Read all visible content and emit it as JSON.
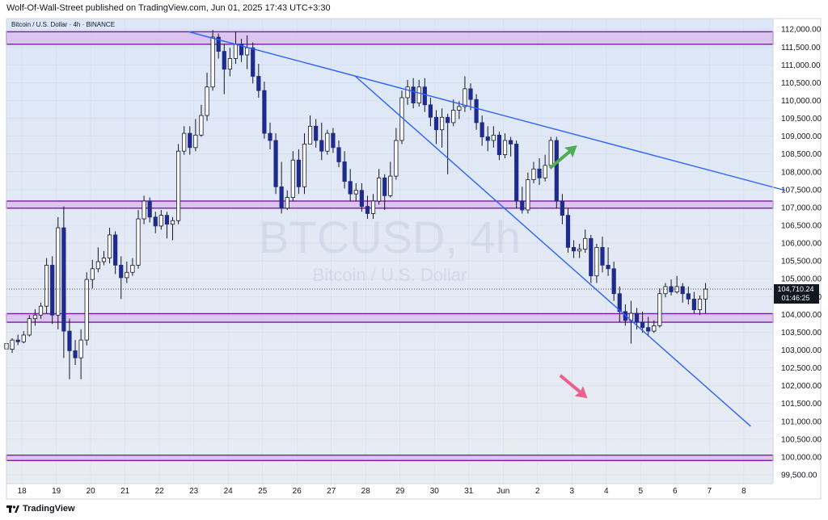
{
  "header": {
    "text": "Wolf-Of-Wall-Street published on TradingView.com, Jun 01, 2025 17:43 UTC+3:30"
  },
  "footer": {
    "logo_text": "TradingView"
  },
  "chart_data": {
    "type": "candlestick",
    "symbol_label": "Bitcoin / U.S. Dollar · 4h · BINANCE",
    "watermark": {
      "ticker": "BTCUSD, 4h",
      "name": "Bitcoin / U.S. Dollar"
    },
    "y_axis": {
      "ylim": [
        99250,
        112300
      ],
      "ticks": [
        112000,
        111500,
        111000,
        110500,
        110000,
        109500,
        109000,
        108500,
        108000,
        107500,
        107000,
        106500,
        106000,
        105500,
        105000,
        104500,
        104000,
        103500,
        103000,
        102500,
        102000,
        101500,
        101000,
        100500,
        100000,
        99500
      ],
      "tick_labels": [
        "112,000.00",
        "111,500.00",
        "111,000.00",
        "110,500.00",
        "110,000.00",
        "109,500.00",
        "109,000.00",
        "108,500.00",
        "108,000.00",
        "107,500.00",
        "107,000.00",
        "106,500.00",
        "106,000.00",
        "105,500.00",
        "105,000.00",
        "104,500.00",
        "104,000.00",
        "103,500.00",
        "103,000.00",
        "102,500.00",
        "102,000.00",
        "101,500.00",
        "101,000.00",
        "100,500.00",
        "100,000.00",
        "99,500.00"
      ]
    },
    "x_axis": {
      "ticks": [
        0,
        1,
        2,
        3,
        4,
        5,
        6,
        7,
        8,
        9,
        10,
        11,
        12,
        13,
        14,
        15,
        16,
        17,
        18,
        19,
        20,
        21
      ],
      "tick_labels": [
        "18",
        "19",
        "20",
        "21",
        "22",
        "23",
        "24",
        "25",
        "26",
        "27",
        "28",
        "29",
        "30",
        "31",
        "Jun",
        "2",
        "3",
        "4",
        "5",
        "6",
        "7",
        "8"
      ],
      "xlim": [
        -0.45,
        21.85
      ]
    },
    "current_price": {
      "value": 104710.24,
      "label": "104,710.24",
      "countdown": "01:46:25"
    },
    "zones": [
      {
        "from": 111580,
        "to": 111930
      },
      {
        "from": 106980,
        "to": 107180
      },
      {
        "from": 103780,
        "to": 104020
      },
      {
        "from": 99900,
        "to": 100050
      }
    ],
    "trendlines": [
      {
        "x1": 4.85,
        "y1": 111930,
        "x2": 22.2,
        "y2": 107480
      },
      {
        "x1": 9.7,
        "y1": 110680,
        "x2": 21.2,
        "y2": 100860
      }
    ],
    "arrows": [
      {
        "direction": "up",
        "color": "#4caf50",
        "x": 15.9,
        "y": 108540
      },
      {
        "direction": "down",
        "color": "#ec5f8c",
        "x": 16.2,
        "y": 101850
      }
    ],
    "colors": {
      "up": "#ffffff",
      "down": "#1e2a8c",
      "zone_fill": "#d9b8ec",
      "zone_border": "#7a1fa2",
      "trendline": "#2962ff",
      "background_top": "#dde7f8",
      "background_bottom": "#e8ebf2"
    },
    "start_x": -0.45,
    "bar_step": 0.1667,
    "candles": [
      [
        103030,
        103180,
        102950,
        102880
      ],
      [
        103020,
        103280,
        103330,
        102920
      ],
      [
        103280,
        103230,
        103430,
        103140
      ],
      [
        103230,
        103420,
        103530,
        103190
      ],
      [
        103420,
        103880,
        103980,
        103380
      ],
      [
        103880,
        103980,
        104140,
        103680
      ],
      [
        103980,
        104230,
        104330,
        103880
      ],
      [
        104230,
        105380,
        105580,
        104030
      ],
      [
        105380,
        103980,
        105630,
        103730
      ],
      [
        103980,
        106430,
        106730,
        103580
      ],
      [
        106430,
        103530,
        107030,
        102780
      ],
      [
        103530,
        102980,
        103880,
        102180
      ],
      [
        102980,
        102780,
        103280,
        102580
      ],
      [
        102780,
        103280,
        103580,
        102180
      ],
      [
        103280,
        104980,
        105180,
        103130
      ],
      [
        104980,
        105280,
        105530,
        104730
      ],
      [
        105280,
        105480,
        105880,
        105180
      ],
      [
        105480,
        105580,
        105780,
        105380
      ],
      [
        105580,
        106230,
        106430,
        105430
      ],
      [
        106230,
        105380,
        106330,
        105130
      ],
      [
        105380,
        105030,
        105630,
        104430
      ],
      [
        105030,
        105180,
        105480,
        104880
      ],
      [
        105180,
        105380,
        105580,
        105080
      ],
      [
        105380,
        106680,
        106930,
        105280
      ],
      [
        106680,
        107180,
        107330,
        106530
      ],
      [
        107180,
        106730,
        107280,
        106580
      ],
      [
        106730,
        106480,
        106880,
        106280
      ],
      [
        106480,
        106780,
        106930,
        106380
      ],
      [
        106780,
        106530,
        106880,
        106130
      ],
      [
        106530,
        106630,
        106730,
        106080
      ],
      [
        106630,
        108580,
        108780,
        106530
      ],
      [
        108580,
        109080,
        109280,
        108480
      ],
      [
        109080,
        108680,
        109280,
        108480
      ],
      [
        108680,
        109030,
        109480,
        108580
      ],
      [
        109030,
        109580,
        109880,
        108980
      ],
      [
        109580,
        110380,
        110780,
        109430
      ],
      [
        110380,
        111780,
        111980,
        110280
      ],
      [
        111780,
        111380,
        111880,
        111180
      ],
      [
        111380,
        110880,
        111580,
        110180
      ],
      [
        110880,
        111180,
        111480,
        110680
      ],
      [
        111180,
        111580,
        111930,
        111030
      ],
      [
        111580,
        111280,
        111730,
        111080
      ],
      [
        111280,
        111480,
        111830,
        110880
      ],
      [
        111480,
        110680,
        111630,
        110480
      ],
      [
        110680,
        110280,
        111030,
        110080
      ],
      [
        110280,
        109080,
        110530,
        108930
      ],
      [
        109080,
        108880,
        109380,
        108630
      ],
      [
        108880,
        107580,
        109080,
        107380
      ],
      [
        107580,
        106980,
        108280,
        106830
      ],
      [
        106980,
        107280,
        107480,
        106930
      ],
      [
        107280,
        108330,
        108580,
        107180
      ],
      [
        108330,
        107580,
        108630,
        107380
      ],
      [
        107580,
        108780,
        109080,
        107380
      ],
      [
        108780,
        109280,
        109580,
        109130
      ],
      [
        109280,
        108880,
        109480,
        108680
      ],
      [
        108880,
        108580,
        109380,
        108330
      ],
      [
        108580,
        109080,
        109180,
        108480
      ],
      [
        109080,
        108680,
        109230,
        108530
      ],
      [
        108680,
        108280,
        108880,
        108130
      ],
      [
        108280,
        107730,
        108580,
        107530
      ],
      [
        107730,
        107380,
        108080,
        107180
      ],
      [
        107380,
        107480,
        107680,
        107180
      ],
      [
        107480,
        107030,
        107680,
        106880
      ],
      [
        107030,
        106830,
        107330,
        106680
      ],
      [
        106830,
        107180,
        107380,
        106680
      ],
      [
        107180,
        107830,
        108080,
        107080
      ],
      [
        107830,
        107330,
        107930,
        106930
      ],
      [
        107330,
        107880,
        108280,
        107280
      ],
      [
        107880,
        108880,
        109230,
        107780
      ],
      [
        108880,
        110080,
        110280,
        108780
      ],
      [
        110080,
        110380,
        110580,
        109880
      ],
      [
        110380,
        109930,
        110630,
        109780
      ],
      [
        109930,
        110380,
        110580,
        109830
      ],
      [
        110380,
        109880,
        110630,
        109680
      ],
      [
        109880,
        109530,
        110080,
        109280
      ],
      [
        109530,
        109180,
        109730,
        108780
      ],
      [
        109180,
        109530,
        109780,
        108680
      ],
      [
        109530,
        109380,
        109630,
        107930
      ],
      [
        109380,
        109730,
        110030,
        109280
      ],
      [
        109730,
        109830,
        109980,
        109480
      ],
      [
        109830,
        110330,
        110680,
        109680
      ],
      [
        110330,
        110030,
        110480,
        109730
      ],
      [
        110030,
        109380,
        110180,
        109180
      ],
      [
        109380,
        108980,
        109580,
        108730
      ],
      [
        108980,
        108880,
        109280,
        108580
      ],
      [
        108880,
        109030,
        109280,
        108680
      ],
      [
        109030,
        108480,
        109130,
        108330
      ],
      [
        108480,
        108880,
        109080,
        108380
      ],
      [
        108880,
        108780,
        108980,
        108430
      ],
      [
        108780,
        107180,
        108880,
        106980
      ],
      [
        107180,
        106930,
        107580,
        106830
      ],
      [
        106930,
        107780,
        107980,
        106830
      ],
      [
        107780,
        108080,
        108280,
        107680
      ],
      [
        108080,
        107830,
        108380,
        107630
      ],
      [
        107830,
        108180,
        108480,
        107730
      ],
      [
        108180,
        108880,
        108980,
        108080
      ],
      [
        108880,
        107180,
        108980,
        106980
      ],
      [
        107180,
        106780,
        107380,
        106530
      ],
      [
        106780,
        105880,
        106980,
        105730
      ],
      [
        105880,
        105780,
        106080,
        105580
      ],
      [
        105780,
        105830,
        105980,
        105580
      ],
      [
        105830,
        106130,
        106380,
        105730
      ],
      [
        106130,
        105080,
        106230,
        104880
      ],
      [
        105080,
        105880,
        105980,
        104880
      ],
      [
        105880,
        105380,
        106180,
        105180
      ],
      [
        105380,
        105280,
        105880,
        105080
      ],
      [
        105280,
        104580,
        105480,
        104380
      ],
      [
        104580,
        104080,
        104780,
        103780
      ],
      [
        104080,
        103830,
        104280,
        103680
      ],
      [
        103830,
        104030,
        104380,
        103180
      ],
      [
        104030,
        103780,
        104180,
        103580
      ],
      [
        103780,
        103630,
        104080,
        103480
      ],
      [
        103630,
        103530,
        103930,
        103380
      ],
      [
        103530,
        103680,
        103830,
        103480
      ],
      [
        103680,
        104580,
        104730,
        103630
      ],
      [
        104580,
        104780,
        104880,
        104480
      ],
      [
        104780,
        104630,
        104980,
        104530
      ],
      [
        104630,
        104780,
        105080,
        104580
      ],
      [
        104780,
        104580,
        104880,
        104330
      ],
      [
        104580,
        104430,
        104780,
        104280
      ],
      [
        104430,
        104130,
        104630,
        104030
      ],
      [
        104130,
        104430,
        104530,
        103980
      ],
      [
        104430,
        104710,
        104880,
        104030
      ]
    ]
  }
}
